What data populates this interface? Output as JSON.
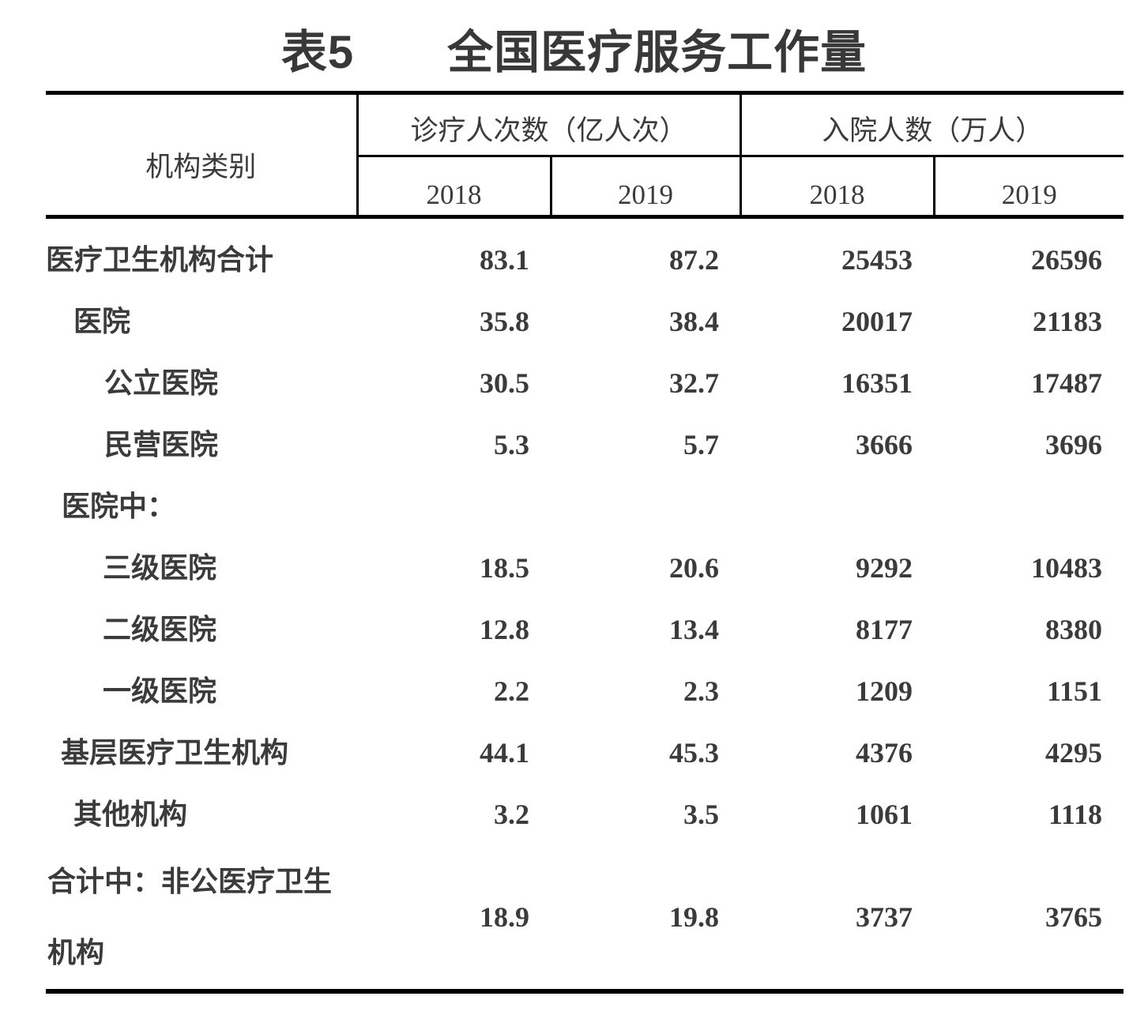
{
  "title": {
    "prefix": "表5",
    "text": "全国医疗服务工作量"
  },
  "table": {
    "col_header": {
      "category": "机构类别",
      "groups": [
        {
          "label": "诊疗人次数（亿人次）",
          "years": [
            "2018",
            "2019"
          ]
        },
        {
          "label": "入院人数（万人）",
          "years": [
            "2018",
            "2019"
          ]
        }
      ]
    },
    "rows": [
      {
        "label": "医疗卫生机构合计",
        "indent": 0,
        "values": [
          "83.1",
          "87.2",
          "25453",
          "26596"
        ]
      },
      {
        "label": "医院",
        "indent": 35,
        "values": [
          "35.8",
          "38.4",
          "20017",
          "21183"
        ]
      },
      {
        "label": "公立医院",
        "indent": 74,
        "values": [
          "30.5",
          "32.7",
          "16351",
          "17487"
        ]
      },
      {
        "label": "民营医院",
        "indent": 74,
        "values": [
          "5.3",
          "5.7",
          "3666",
          "3696"
        ]
      },
      {
        "label": "医院中：",
        "indent": 20,
        "values": [
          "",
          "",
          "",
          ""
        ]
      },
      {
        "label": "三级医院",
        "indent": 72,
        "values": [
          "18.5",
          "20.6",
          "9292",
          "10483"
        ]
      },
      {
        "label": "二级医院",
        "indent": 72,
        "values": [
          "12.8",
          "13.4",
          "8177",
          "8380"
        ]
      },
      {
        "label": "一级医院",
        "indent": 72,
        "values": [
          "2.2",
          "2.3",
          "1209",
          "1151"
        ]
      },
      {
        "label": "基层医疗卫生机构",
        "indent": 19,
        "values": [
          "44.1",
          "45.3",
          "4376",
          "4295"
        ]
      },
      {
        "label": "其他机构",
        "indent": 35,
        "values": [
          "3.2",
          "3.5",
          "1061",
          "1118"
        ]
      },
      {
        "label": "合计中：非公医疗卫生机构",
        "indent": 2,
        "values": [
          "18.9",
          "19.8",
          "3737",
          "3765"
        ]
      }
    ]
  }
}
